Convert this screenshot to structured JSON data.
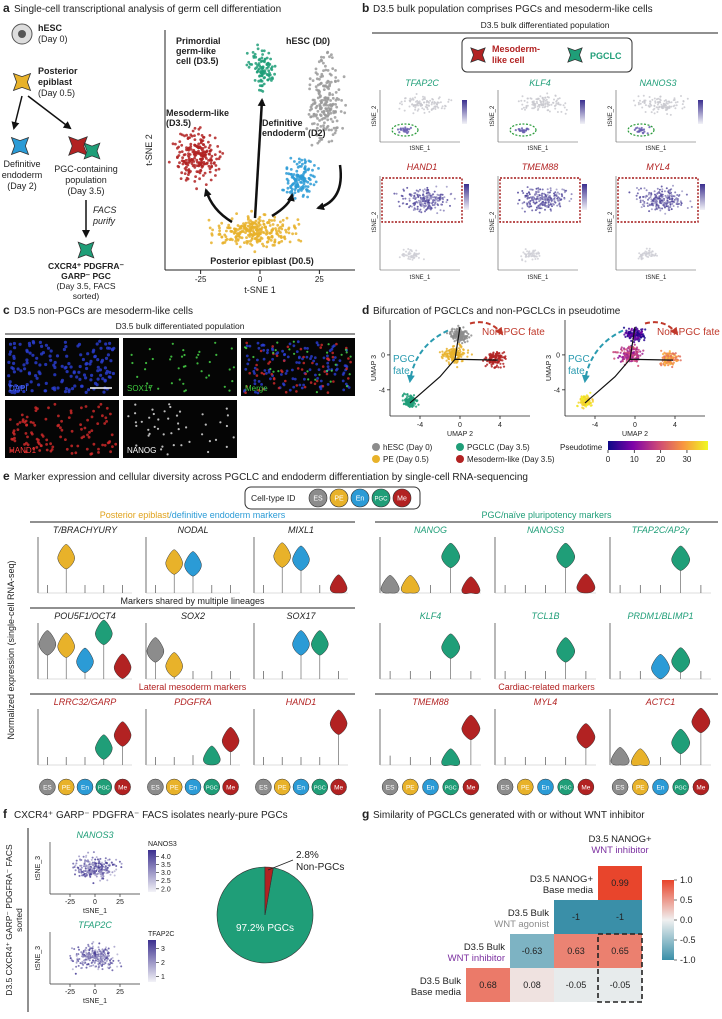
{
  "panel_a": {
    "letter": "a",
    "title": "Single-cell transcriptional analysis of germ cell differentiation",
    "flow": {
      "hesc": [
        "hESC",
        "(Day 0)"
      ],
      "pe": [
        "Posterior",
        "epiblast",
        "(Day 0.5)"
      ],
      "de": [
        "Definitive",
        "endoderm",
        "(Day 2)"
      ],
      "pgc_pop": [
        "PGC-containing",
        "population",
        "(Day 3.5)"
      ],
      "facs": [
        "FACS",
        "purify"
      ],
      "sorted": [
        "CXCR4⁺ PDGFRA⁻",
        "GARP⁻ PGC",
        "(Day 3.5, FACS",
        "sorted)"
      ]
    },
    "tsne": {
      "xlabel": "t-SNE 1",
      "ylabel": "t-SNE 2",
      "xlim": [
        -40,
        40
      ],
      "xticks": [
        -25,
        0,
        25
      ],
      "clusters": {
        "pgc": [
          "Primordial",
          "germ-like",
          "cell (D3.5)"
        ],
        "hesc": [
          "hESC (D0)"
        ],
        "meso": [
          "Mesoderm-like",
          "(D3.5)"
        ],
        "de": [
          "Definitive",
          "endoderm (D2)"
        ],
        "pe": [
          "Posterior epiblast (D0.5)"
        ]
      }
    }
  },
  "panel_b": {
    "letter": "b",
    "title": "D3.5 bulk population comprises PGCs and mesoderm-like cells",
    "subtitle": "D3.5 bulk differentiated population",
    "legend": {
      "meso": [
        "Mesoderm-",
        "like cell"
      ],
      "pgclc": "PGCLC"
    },
    "xlabel": "tSNE_1",
    "ylabel": "tSNE_2",
    "pgc_genes": [
      "TFAP2C",
      "KLF4",
      "NANOS3"
    ],
    "meso_genes": [
      "HAND1",
      "TMEM88",
      "MYL4"
    ]
  },
  "panel_c": {
    "letter": "c",
    "title": "D3.5 non-PGCs are mesoderm-like cells",
    "subtitle": "D3.5 bulk differentiated population",
    "channels": [
      "DAPI",
      "SOX17",
      "Merge",
      "HAND1",
      "NANOG"
    ]
  },
  "panel_d": {
    "letter": "d",
    "title": "Bifurcation of PGCLCs and non-PGCLCs in pseudotime",
    "xlabel": "UMAP 2",
    "ylabel": "UMAP 3",
    "xlim": [
      -7,
      7
    ],
    "xticks": [
      -4,
      0,
      4
    ],
    "ylim": [
      -7,
      4
    ],
    "yticks": [
      0,
      -4
    ],
    "pgc_fate": [
      "PGC",
      "fate"
    ],
    "non_pgc_fate": "Non-PGC fate",
    "legend": [
      {
        "name": "hESC (Day 0)",
        "color": "#8c8c8c"
      },
      {
        "name": "PGCLC (Day 3.5)",
        "color": "#1f9e78"
      },
      {
        "name": "PE (Day 0.5)",
        "color": "#e8b22a"
      },
      {
        "name": "Mesoderm-like (Day 3.5)",
        "color": "#b22222"
      }
    ],
    "pseudotime": {
      "label": "Pseudotime",
      "lim": [
        0,
        38
      ],
      "ticks": [
        0,
        10,
        20,
        30
      ]
    }
  },
  "panel_e": {
    "letter": "e",
    "title": "Marker expression and cellular diversity across PGCLC and endoderm differentiation by single-cell RNA-sequencing",
    "legend_title": "Cell-type ID",
    "cell_types": [
      {
        "name": "ES",
        "color": "#8c8c8c"
      },
      {
        "name": "PE",
        "color": "#e8b22a"
      },
      {
        "name": "En",
        "color": "#2b9bd6"
      },
      {
        "name": "PGC",
        "color": "#1f9e78"
      },
      {
        "name": "Me",
        "color": "#b22222"
      }
    ],
    "ylabel": "Normalized expression (single-cell RNA-seq)",
    "blocks": [
      {
        "header": [
          {
            "text": "Posterior epiblast",
            "color": "#e0a21b"
          },
          {
            "text": "/definitive endoderm markers",
            "color": "#2b9bd6"
          }
        ],
        "gene_color": "#222222",
        "genes": [
          {
            "name": "T/BRACHYURY",
            "levels": [
              0,
              2.2,
              0,
              0,
              0
            ],
            "ylim": [
              0,
              3.5
            ]
          },
          {
            "name": "NODAL",
            "levels": [
              0,
              1.6,
              1.5,
              0,
              0
            ],
            "ylim": [
              0,
              3
            ]
          },
          {
            "name": "MIXL1",
            "levels": [
              0,
              2.3,
              2.1,
              0,
              0.3
            ],
            "ylim": [
              0,
              3.5
            ]
          }
        ]
      },
      {
        "header": [
          {
            "text": "PGC/naïve pluripotency markers",
            "color": "#1f9e78"
          }
        ],
        "gene_color": "#1f9e78",
        "genes": [
          {
            "name": "NANOG",
            "levels": [
              0.3,
              0.3,
              0,
              2.6,
              0.2
            ],
            "ylim": [
              0,
              4
            ]
          },
          {
            "name": "NANOS3",
            "levels": [
              0,
              0,
              0,
              2.6,
              0.4
            ],
            "ylim": [
              0,
              4
            ]
          },
          {
            "name": "TFAP2C/AP2γ",
            "levels": [
              0,
              0,
              0,
              1.8,
              0
            ],
            "ylim": [
              0,
              3
            ]
          }
        ]
      },
      {
        "header": [
          {
            "text": "Markers shared by multiple lineages",
            "color": "#222222"
          }
        ],
        "gene_color": "#222222",
        "genes": [
          {
            "name": "POU5F1/OCT4",
            "levels": [
              3,
              2.8,
              1.5,
              3.9,
              1
            ],
            "ylim": [
              0,
              4.8
            ]
          },
          {
            "name": "SOX2",
            "levels": [
              1.5,
              0.7,
              0,
              0,
              0
            ],
            "ylim": [
              0,
              3
            ]
          },
          {
            "name": "SOX17",
            "levels": [
              0,
              0,
              2,
              2,
              0
            ],
            "ylim": [
              0,
              3.2
            ]
          }
        ]
      },
      {
        "gene_color": "#1f9e78",
        "genes": [
          {
            "name": "KLF4",
            "levels": [
              0,
              0,
              0,
              1.7,
              0
            ],
            "ylim": [
              0,
              3
            ]
          },
          {
            "name": "TCL1B",
            "levels": [
              0,
              0,
              0,
              1.5,
              0
            ],
            "ylim": [
              0,
              3
            ]
          },
          {
            "name": "PRDM1/BLIMP1",
            "levels": [
              0,
              0,
              0.5,
              0.8,
              0
            ],
            "ylim": [
              0,
              2.5
            ]
          }
        ]
      },
      {
        "header": [
          {
            "text": "Lateral mesoderm markers",
            "color": "#b22222"
          }
        ],
        "gene_color": "#b22222",
        "genes": [
          {
            "name": "LRRC32/GARP",
            "levels": [
              0,
              0,
              0,
              0.9,
              1.6
            ],
            "ylim": [
              0,
              3
            ]
          },
          {
            "name": "PDGFRA",
            "levels": [
              0,
              0,
              0.1,
              0.3,
              1.3
            ],
            "ylim": [
              0,
              3
            ]
          },
          {
            "name": "HAND1",
            "levels": [
              0,
              0,
              0,
              0,
              2.6
            ],
            "ylim": [
              0,
              3.5
            ]
          }
        ]
      },
      {
        "header": [
          {
            "text": "Cardiac-related markers",
            "color": "#b22222"
          }
        ],
        "gene_color": "#b22222",
        "genes": [
          {
            "name": "TMEM88",
            "levels": [
              0.1,
              0,
              0,
              0.2,
              2.6
            ],
            "ylim": [
              0,
              4
            ]
          },
          {
            "name": "MYL4",
            "levels": [
              0,
              0,
              0,
              0,
              1.5
            ],
            "ylim": [
              0,
              3
            ]
          },
          {
            "name": "ACTC1",
            "levels": [
              0.3,
              0.2,
              0,
              1.6,
              3.1
            ],
            "ylim": [
              0,
              4
            ]
          }
        ]
      }
    ]
  },
  "panel_f": {
    "letter": "f",
    "title": "CXCR4⁺ GARP⁻ PDGFRA⁻ FACS isolates nearly-pure PGCs",
    "side_label": [
      "D3.5 CXCR4⁺ GARP⁻ PDGFRA⁻ FACS",
      "sorted"
    ],
    "xlabel": "tSNE_1",
    "ylabel": "tSNE_3",
    "xlim": [
      -45,
      45
    ],
    "xticks": [
      -25,
      0,
      25
    ],
    "features": [
      {
        "gene": "NANOS3",
        "lim": [
          1.8,
          4.4
        ],
        "ticks": [
          {
            "value": 4,
            "label": "4.0"
          },
          {
            "value": 3.5,
            "label": "3.5"
          },
          {
            "value": 3,
            "label": "3.0"
          },
          {
            "value": 2.5,
            "label": "2.5"
          },
          {
            "value": 2,
            "label": "2.0"
          }
        ]
      },
      {
        "gene": "TFAP2C",
        "lim": [
          0.6,
          3.6
        ],
        "ticks": [
          3,
          2,
          1
        ]
      }
    ],
    "pie": {
      "type": "pie",
      "names": [
        "PGCs",
        "Non-PGCs"
      ],
      "values": [
        97.2,
        2.8
      ],
      "value_labels": [
        "97.2%",
        "2.8%"
      ],
      "colors": [
        "#1f9e78",
        "#b22222"
      ]
    }
  },
  "panel_g": {
    "letter": "g",
    "title": "Similarity of PGCLCs generated with or without WNT inhibitor",
    "column_label": [
      "D3.5 NANOG+",
      "WNT inhibitor"
    ],
    "column_sub_color": "#7b2fa0",
    "rows": [
      {
        "label": [
          "D3.5 NANOG+",
          "Base media"
        ],
        "sub_color": "#222222",
        "values": [
          0.99
        ]
      },
      {
        "label": [
          "D3.5 Bulk",
          "WNT agonist"
        ],
        "sub_color": "#8c8c8c",
        "values": [
          -1,
          -1
        ]
      },
      {
        "label": [
          "D3.5 Bulk",
          "WNT inhibitor"
        ],
        "sub_color": "#7b2fa0",
        "values": [
          -0.63,
          0.63,
          0.65
        ]
      },
      {
        "label": [
          "D3.5 Bulk",
          "Base media"
        ],
        "sub_color": "#222222",
        "values": [
          0.68,
          0.08,
          -0.05,
          -0.05
        ]
      }
    ],
    "clim": [
      -1,
      1
    ],
    "cticks": [
      {
        "value": 1,
        "label": "1.0"
      },
      {
        "value": 0.5,
        "label": "0.5"
      },
      {
        "value": 0,
        "label": "0.0"
      },
      {
        "value": -0.5,
        "label": "-0.5"
      },
      {
        "value": -1,
        "label": "-1.0"
      }
    ]
  }
}
